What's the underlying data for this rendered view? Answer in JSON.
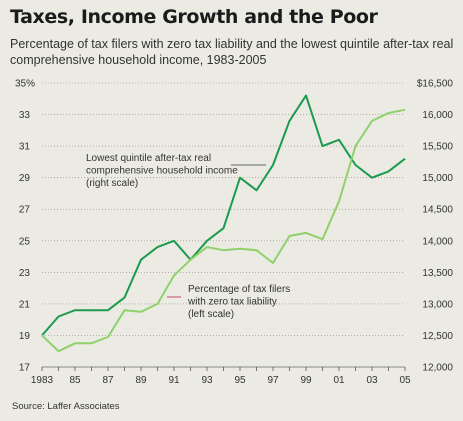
{
  "chart": {
    "title": "Taxes, Income Growth and the Poor",
    "subtitle": "Percentage of tax filers with zero tax liability and the lowest quintile after-tax real comprehensive household income, 1983-2005",
    "source": "Source: Laffer Associates"
  },
  "colors": {
    "background": "#ebeae3",
    "income_line": "#1c9a4e",
    "zero_tax_line": "#8fd16b",
    "grid": "#8a8a8a"
  },
  "chart_data": {
    "type": "line",
    "x": [
      1983,
      1984,
      1985,
      1986,
      1987,
      1988,
      1989,
      1990,
      1991,
      1992,
      1993,
      1994,
      1995,
      1996,
      1997,
      1998,
      1999,
      2000,
      2001,
      2002,
      2003,
      2004,
      2005
    ],
    "x_tick_labels": [
      "1983",
      "85",
      "87",
      "89",
      "91",
      "93",
      "95",
      "97",
      "99",
      "01",
      "03",
      "05"
    ],
    "xlim": [
      1983,
      2005
    ],
    "left_axis": {
      "ylim": [
        17,
        35
      ],
      "ticks": [
        "17",
        "19",
        "21",
        "23",
        "25",
        "27",
        "29",
        "31",
        "33",
        "35%"
      ]
    },
    "right_axis": {
      "ylim": [
        12000,
        16500
      ],
      "ticks": [
        "12,000",
        "12,500",
        "13,000",
        "13,500",
        "14,000",
        "14,500",
        "15,000",
        "15,500",
        "16,000",
        "$16,500"
      ]
    },
    "grid": true,
    "series": [
      {
        "name": "Lowest quintile after-tax real comprehensive household income (right scale)",
        "label_lines": [
          "Lowest quintile after-tax real",
          "comprehensive household income",
          "(right scale)"
        ],
        "axis": "right",
        "values": [
          12500,
          12800,
          12900,
          12900,
          12900,
          13100,
          13700,
          13900,
          14000,
          13700,
          14000,
          14200,
          15000,
          14800,
          15200,
          15900,
          16300,
          15500,
          15600,
          15200,
          15000,
          15100,
          15300
        ]
      },
      {
        "name": "Percentage of tax filers with zero tax liability (left scale)",
        "label_lines": [
          "Percentage of tax filers",
          "with zero tax liability",
          "(left scale)"
        ],
        "axis": "left",
        "values": [
          19.0,
          18.0,
          18.5,
          18.5,
          18.9,
          20.6,
          20.5,
          21.0,
          22.8,
          23.8,
          24.6,
          24.4,
          24.5,
          24.4,
          23.6,
          25.3,
          25.5,
          25.1,
          27.5,
          31.0,
          32.6,
          33.1,
          33.3
        ]
      }
    ]
  }
}
